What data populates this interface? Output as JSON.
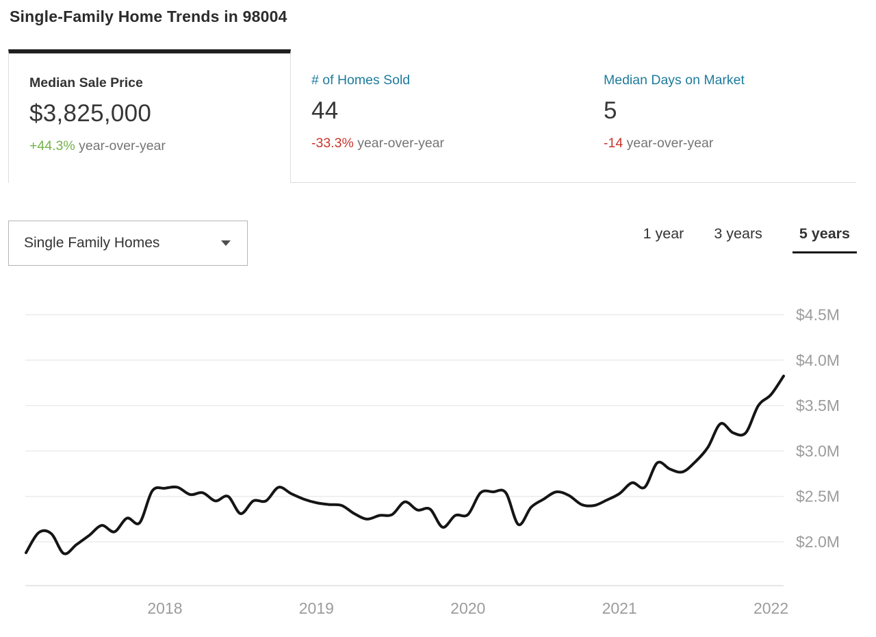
{
  "page": {
    "title": "Single-Family Home Trends in 98004"
  },
  "tabs": [
    {
      "label": "Median Sale Price",
      "value": "$3,825,000",
      "delta": "+44.3%",
      "delta_suffix": " year-over-year",
      "direction": "up",
      "active": true
    },
    {
      "label": "# of Homes Sold",
      "value": "44",
      "delta": "-33.3%",
      "delta_suffix": " year-over-year",
      "direction": "down",
      "active": false
    },
    {
      "label": "Median Days on Market",
      "value": "5",
      "delta": "-14",
      "delta_suffix": " year-over-year",
      "direction": "down",
      "active": false
    }
  ],
  "controls": {
    "property_type_selected": "Single Family Homes",
    "ranges": [
      {
        "label": "1 year",
        "active": false
      },
      {
        "label": "3 years",
        "active": false
      },
      {
        "label": "5 years",
        "active": true
      }
    ]
  },
  "colors": {
    "positive_green": "#74b24c",
    "negative_red": "#c9342b",
    "link_blue": "#1e7b9c",
    "line": "#151515",
    "grid": "#ebebeb",
    "axis_label": "#9c9c9c",
    "tab_top_border": "#1f1f1f"
  },
  "chart_data": {
    "type": "line",
    "title": "Median Sale Price trend, 5 years",
    "x_unit": "month",
    "x": [
      "2017-02",
      "2017-03",
      "2017-04",
      "2017-05",
      "2017-06",
      "2017-07",
      "2017-08",
      "2017-09",
      "2017-10",
      "2017-11",
      "2017-12",
      "2018-01",
      "2018-02",
      "2018-03",
      "2018-04",
      "2018-05",
      "2018-06",
      "2018-07",
      "2018-08",
      "2018-09",
      "2018-10",
      "2018-11",
      "2018-12",
      "2019-01",
      "2019-02",
      "2019-03",
      "2019-04",
      "2019-05",
      "2019-06",
      "2019-07",
      "2019-08",
      "2019-09",
      "2019-10",
      "2019-11",
      "2019-12",
      "2020-01",
      "2020-02",
      "2020-03",
      "2020-04",
      "2020-05",
      "2020-06",
      "2020-07",
      "2020-08",
      "2020-09",
      "2020-10",
      "2020-11",
      "2020-12",
      "2021-01",
      "2021-02",
      "2021-03",
      "2021-04",
      "2021-05",
      "2021-06",
      "2021-07",
      "2021-08",
      "2021-09",
      "2021-10",
      "2021-11",
      "2021-12",
      "2022-01",
      "2022-02"
    ],
    "series": [
      {
        "name": "Median Sale Price",
        "values": [
          1.88,
          2.1,
          2.09,
          1.87,
          1.97,
          2.07,
          2.18,
          2.11,
          2.26,
          2.21,
          2.56,
          2.59,
          2.6,
          2.52,
          2.54,
          2.45,
          2.5,
          2.31,
          2.45,
          2.45,
          2.6,
          2.53,
          2.47,
          2.43,
          2.41,
          2.4,
          2.31,
          2.25,
          2.29,
          2.3,
          2.44,
          2.35,
          2.36,
          2.16,
          2.29,
          2.3,
          2.54,
          2.55,
          2.54,
          2.19,
          2.38,
          2.47,
          2.55,
          2.51,
          2.41,
          2.4,
          2.46,
          2.53,
          2.65,
          2.6,
          2.87,
          2.8,
          2.77,
          2.88,
          3.04,
          3.3,
          3.2,
          3.2,
          3.5,
          3.62,
          3.825
        ]
      }
    ],
    "values_unit": "$M",
    "y_ticks": [
      2.0,
      2.5,
      3.0,
      3.5,
      4.0,
      4.5
    ],
    "y_tick_labels": [
      "$2.0M",
      "$2.5M",
      "$3.0M",
      "$3.5M",
      "$4.0M",
      "$4.5M"
    ],
    "x_tick_labels": [
      "2018",
      "2019",
      "2020",
      "2021",
      "2022"
    ],
    "x_tick_indices": [
      11,
      23,
      35,
      47,
      59
    ],
    "ylim": [
      1.5,
      4.75
    ],
    "grid": "horizontal",
    "legend": "none",
    "line_color": "#151515"
  }
}
